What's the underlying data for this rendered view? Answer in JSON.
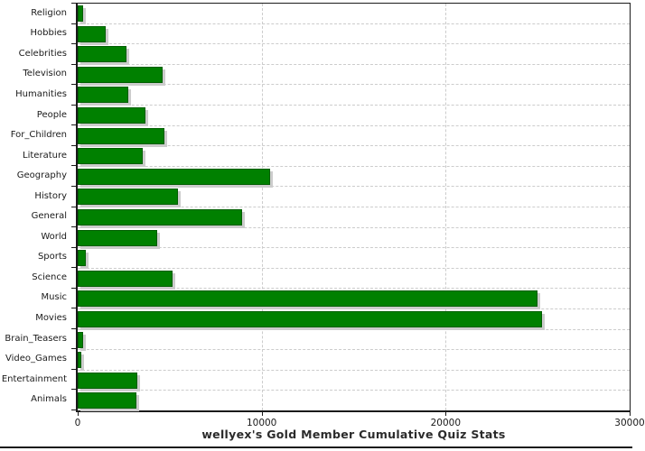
{
  "chart_title": "wellyex's Gold Member Cumulative Quiz Stats",
  "chart_data": {
    "type": "bar",
    "orientation": "horizontal",
    "title": "wellyex's Gold Member Cumulative Quiz Stats",
    "categories": [
      "Religion",
      "Hobbies",
      "Celebrities",
      "Television",
      "Humanities",
      "People",
      "For_Children",
      "Literature",
      "Geography",
      "History",
      "General",
      "World",
      "Sports",
      "Science",
      "Music",
      "Movies",
      "Brain_Teasers",
      "Video_Games",
      "Entertainment",
      "Animals"
    ],
    "values": [
      200,
      1400,
      2550,
      4500,
      2650,
      3600,
      4600,
      3450,
      10350,
      5350,
      8850,
      4200,
      350,
      5050,
      24900,
      25150,
      200,
      120,
      3150,
      3100
    ],
    "xlabel": "",
    "ylabel": "",
    "xlim": [
      0,
      30000
    ],
    "x_ticks": [
      0,
      10000,
      20000,
      30000
    ],
    "x_tick_labels": [
      "0",
      "10000",
      "20000",
      "30000"
    ],
    "grid": true,
    "legend_position": "none",
    "colors": {
      "bar_fill": "#008000",
      "bar_border": "#005e00",
      "bar_shadow": "#cccccc",
      "grid_line": "#cccccc",
      "axis": "#1a1a1a",
      "label_text": "#1a1a1a",
      "title_text": "#2b2b2b"
    }
  }
}
